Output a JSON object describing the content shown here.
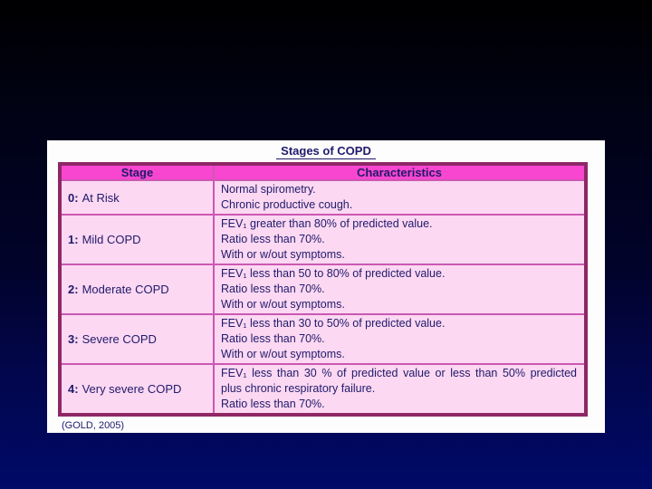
{
  "colors": {
    "background_top": "#000001",
    "background_bottom": "#000a68",
    "panel": "#fdfdfd",
    "header_bg": "#f846d0",
    "row_bg": "#fcd8f2",
    "border_outer": "#8e2765",
    "border_inner": "#cb58b2",
    "text": "#201a6b"
  },
  "slide": {
    "title": "Stages of COPD",
    "source": "(GOLD, 2005)"
  },
  "table": {
    "headers": [
      "Stage",
      "Characteristics"
    ],
    "rows": [
      {
        "stage_num": "0:",
        "stage_name": "At Risk",
        "characteristics": [
          "Normal spirometry.",
          "Chronic productive cough."
        ]
      },
      {
        "stage_num": "1:",
        "stage_name": "Mild COPD",
        "characteristics": [
          "FEV₁ greater than 80% of predicted value.",
          "Ratio less than 70%.",
          "With or w/out symptoms."
        ]
      },
      {
        "stage_num": "2:",
        "stage_name": "Moderate COPD",
        "characteristics": [
          "FEV₁ less than 50 to 80% of predicted value.",
          "Ratio less than 70%.",
          "With or w/out symptoms."
        ]
      },
      {
        "stage_num": "3:",
        "stage_name": "Severe COPD",
        "characteristics": [
          "FEV₁ less than 30 to 50% of predicted value.",
          "Ratio less than 70%.",
          "With or w/out symptoms."
        ]
      },
      {
        "stage_num": "4:",
        "stage_name": "Very severe COPD",
        "characteristics": [
          "FEV₁ less than 30 % of predicted value or less than 50% predicted plus chronic respiratory failure.",
          "Ratio less than 70%."
        ],
        "justify_lines": [
          0
        ]
      }
    ]
  }
}
